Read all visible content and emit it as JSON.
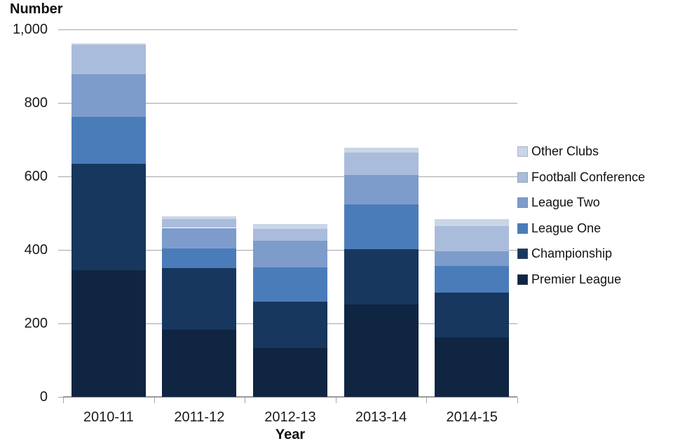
{
  "chart_data": {
    "type": "bar",
    "stacked": true,
    "title": "",
    "ylabel": "Number",
    "xlabel": "Year",
    "categories": [
      "2010-11",
      "2011-12",
      "2012-13",
      "2013-14",
      "2014-15"
    ],
    "series": [
      {
        "name": "Premier League",
        "color": "#0f2541",
        "values": [
          345,
          182,
          133,
          252,
          162
        ]
      },
      {
        "name": "Championship",
        "color": "#17375e",
        "values": [
          290,
          169,
          126,
          149,
          121
        ]
      },
      {
        "name": "League One",
        "color": "#4a7cba",
        "values": [
          127,
          52,
          93,
          123,
          73
        ]
      },
      {
        "name": "League Two",
        "color": "#7d9ccb",
        "values": [
          117,
          57,
          73,
          79,
          41
        ]
      },
      {
        "name": "Football Conference",
        "color": "#aabcdb",
        "values": [
          79,
          23,
          33,
          62,
          68
        ]
      },
      {
        "name": "Other Clubs",
        "color": "#c9d6e8",
        "values": [
          4,
          8,
          12,
          14,
          18
        ]
      }
    ],
    "totals": [
      962,
      491,
      470,
      679,
      483
    ],
    "ylim": [
      0,
      1000
    ],
    "ytick_step": 200,
    "ytick_labels": [
      "0",
      "200",
      "400",
      "600",
      "800",
      "1,000"
    ],
    "grid": true,
    "legend_position": "right",
    "legend_order_top_to_bottom": [
      "Other Clubs",
      "Football Conference",
      "League Two",
      "League One",
      "Championship",
      "Premier League"
    ]
  },
  "colors": {
    "gridline": "#a6a6a6",
    "axis": "#9b9b9b",
    "text": "#1a1a1a"
  }
}
